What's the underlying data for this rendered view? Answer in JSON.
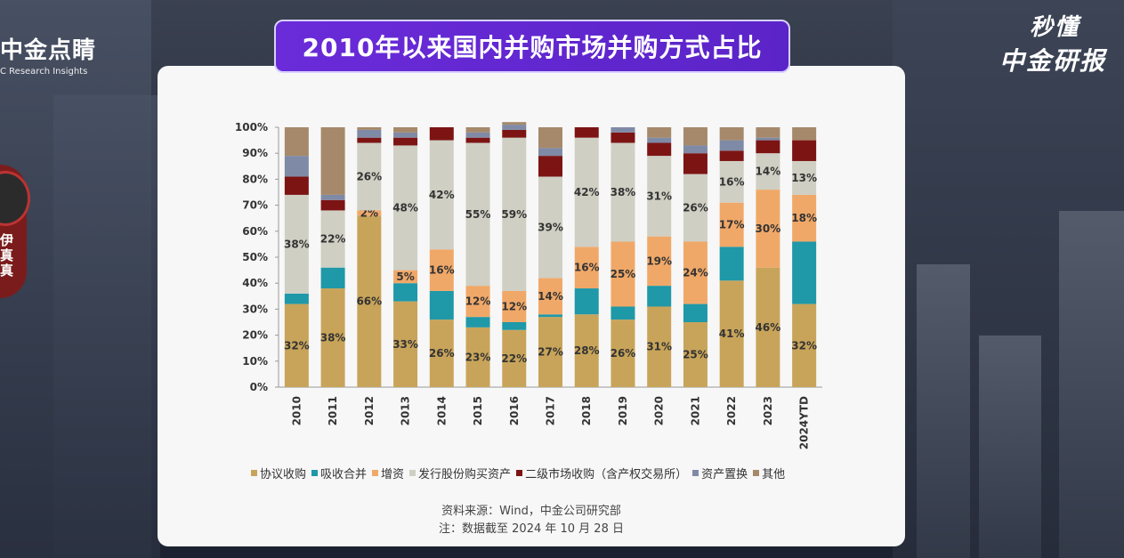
{
  "app": {
    "left_logo_cn": "中金点睛",
    "left_logo_en": "C Research Insights",
    "avatar_text": "伊 真 真",
    "right_logo_line1": "秒懂",
    "right_logo_line2": "中金研报",
    "title": "2010年以来国内并购市场并购方式占比",
    "source_line1": "资料来源：Wind，中金公司研究部",
    "source_line2": "注：数据截至 2024 年 10 月 28 日"
  },
  "colors": {
    "协议收购": "#c8a45a",
    "吸收合并": "#1f98a8",
    "增资": "#f0a868",
    "发行股份购买资产": "#cfcfc4",
    "二级市场收购（含产权交易所）": "#7d1414",
    "资产置换": "#7f8aa6",
    "其他": "#a6896b"
  },
  "chart_data": {
    "type": "bar",
    "stacked": true,
    "categories": [
      "2010",
      "2011",
      "2012",
      "2013",
      "2014",
      "2015",
      "2016",
      "2017",
      "2018",
      "2019",
      "2020",
      "2021",
      "2022",
      "2023",
      "2024YTD"
    ],
    "y_ticks": [
      "0%",
      "10%",
      "20%",
      "30%",
      "40%",
      "50%",
      "60%",
      "70%",
      "80%",
      "90%",
      "100%"
    ],
    "ylim": [
      0,
      100
    ],
    "series": [
      {
        "name": "协议收购",
        "values": [
          32,
          38,
          66,
          33,
          26,
          23,
          22,
          27,
          28,
          26,
          31,
          25,
          41,
          46,
          32
        ],
        "labels": [
          "32%",
          "38%",
          "66%",
          "33%",
          "26%",
          "23%",
          "22%",
          "27%",
          "28%",
          "26%",
          "31%",
          "25%",
          "41%",
          "46%",
          "32%"
        ]
      },
      {
        "name": "吸收合并",
        "values": [
          4,
          8,
          0,
          7,
          11,
          4,
          3,
          1,
          10,
          5,
          8,
          7,
          13,
          0,
          24
        ],
        "labels": []
      },
      {
        "name": "增资",
        "values": [
          0,
          0,
          2,
          5,
          16,
          12,
          12,
          14,
          16,
          25,
          19,
          24,
          17,
          30,
          18
        ],
        "labels": [
          "",
          "",
          "2%",
          "5%",
          "16%",
          "12%",
          "12%",
          "14%",
          "16%",
          "25%",
          "19%",
          "24%",
          "17%",
          "30%",
          "18%"
        ]
      },
      {
        "name": "发行股份购买资产",
        "values": [
          38,
          22,
          26,
          48,
          42,
          55,
          59,
          39,
          42,
          38,
          31,
          26,
          16,
          14,
          13
        ],
        "labels": [
          "38%",
          "22%",
          "26%",
          "48%",
          "42%",
          "55%",
          "59%",
          "39%",
          "42%",
          "38%",
          "31%",
          "26%",
          "16%",
          "14%",
          "13%"
        ]
      },
      {
        "name": "二级市场收购（含产权交易所）",
        "values": [
          7,
          4,
          2,
          3,
          5,
          2,
          3,
          8,
          4,
          4,
          5,
          8,
          4,
          5,
          8
        ],
        "labels": []
      },
      {
        "name": "资产置换",
        "values": [
          8,
          2,
          3,
          2,
          0,
          2,
          2,
          3,
          0,
          2,
          2,
          3,
          4,
          1,
          0
        ],
        "labels": []
      },
      {
        "name": "其他",
        "values": [
          11,
          26,
          1,
          2,
          0,
          2,
          1,
          8,
          0,
          0,
          4,
          7,
          5,
          4,
          5
        ],
        "labels": []
      }
    ],
    "legend_position": "bottom"
  }
}
